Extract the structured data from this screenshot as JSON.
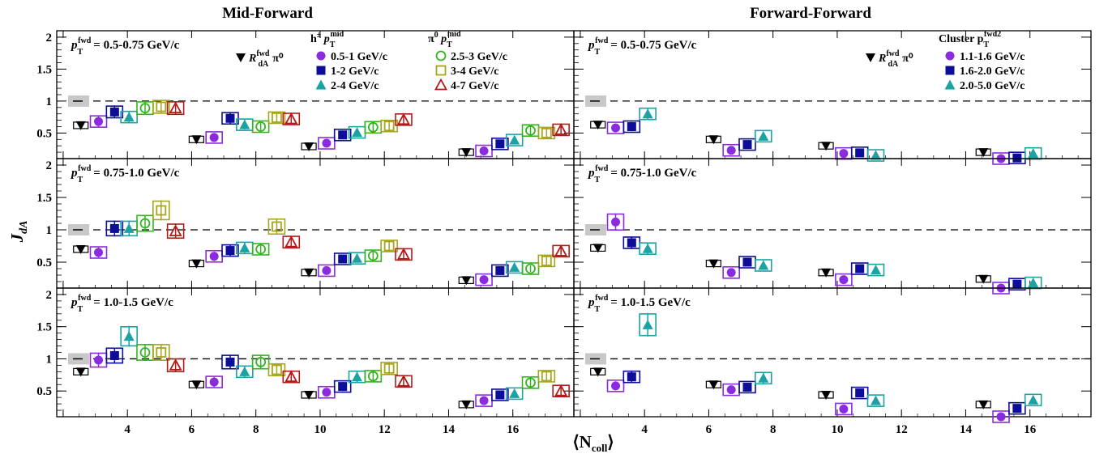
{
  "titles": {
    "left": "Mid-Forward",
    "right": "Forward-Forward"
  },
  "ylabel": "J",
  "ylabel_sub": "dA",
  "xlabel": "⟨N",
  "xlabel_sub": "coll",
  "xlabel_close": "⟩",
  "pt_labels": [
    "= 0.5-0.75 GeV/c",
    "= 0.75-1.0 GeV/c",
    "= 1.0-1.5 GeV/c"
  ],
  "pt_label_prefix": "p",
  "pt_label_sub": "T",
  "pt_label_sup": "fwd",
  "legend": {
    "rda_label": "R",
    "rda_sup": "fwd",
    "rda_sub": "dA",
    "rda_suffix": "π⁰",
    "h_head": "h",
    "h_head_sup": "±",
    "h_head_p": "p",
    "h_head_sub": "T",
    "h_head_sup2": "mid",
    "pi_head": "π",
    "pi_head_sup": "0",
    "pi_head_p": "p",
    "pi_head_sub": "T",
    "pi_head_sup2": "mid",
    "cl_head": "Cluster p",
    "cl_head_sub": "T",
    "cl_head_sup": "fwd2",
    "h_items": [
      "0.5-1 GeV/c",
      "1-2 GeV/c",
      "2-4 GeV/c"
    ],
    "pi_items": [
      "2.5-3 GeV/c",
      "3-4 GeV/c",
      "4-7 GeV/c"
    ],
    "cl_items": [
      "1.1-1.6 GeV/c",
      "1.6-2.0 GeV/c",
      "2.0-5.0 GeV/c"
    ]
  },
  "chart_data": {
    "type": "scatter",
    "xlim": [
      1.8,
      17.9
    ],
    "ylim": [
      0.1,
      2.1
    ],
    "xticks": [
      2,
      4,
      6,
      8,
      10,
      12,
      14,
      16
    ],
    "xtick_labels": [
      "4",
      "6",
      "8",
      "10",
      "12",
      "14",
      "16"
    ],
    "yticks": [
      0.5,
      1.0,
      1.5,
      2.0
    ],
    "ytick_labels": [
      "0.5",
      "1",
      "1.5",
      "2"
    ],
    "reference_line": 1.0,
    "ncoll_centers": [
      3.0,
      6.6,
      10.1,
      15.0
    ],
    "colors": {
      "rda": "#000000",
      "h1": "#8b2be0",
      "h2": "#0d0d99",
      "h3": "#1aa3a3",
      "p1": "#33b51f",
      "p2": "#a6a61a",
      "p3": "#b31a1a"
    },
    "mid_forward": {
      "series_order": [
        "h1",
        "h2",
        "h3",
        "p1",
        "p2",
        "p3"
      ],
      "x_offsets": [
        0.1,
        0.6,
        1.05,
        1.55,
        2.05,
        2.5
      ],
      "rows": [
        {
          "rda": [
            0.62,
            0.4,
            0.29,
            0.2
          ],
          "h1": [
            0.68,
            0.43,
            0.34,
            0.22
          ],
          "h2": [
            0.83,
            0.73,
            0.47,
            0.33
          ],
          "h3": [
            0.75,
            0.63,
            0.51,
            0.39
          ],
          "p1": [
            0.89,
            0.6,
            0.59,
            0.54
          ],
          "p2": [
            0.91,
            0.74,
            0.61,
            0.5
          ],
          "p3": [
            0.89,
            0.72,
            0.71,
            0.55
          ]
        },
        {
          "rda": [
            0.7,
            0.48,
            0.34,
            0.22
          ],
          "h1": [
            0.65,
            0.59,
            0.37,
            0.23
          ],
          "h2": [
            1.02,
            0.68,
            0.55,
            0.37
          ],
          "h3": [
            1.02,
            0.72,
            0.56,
            0.42
          ],
          "p1": [
            1.1,
            0.7,
            0.6,
            0.4
          ],
          "p2": [
            1.3,
            1.05,
            0.75,
            0.52
          ],
          "p3": [
            0.98,
            0.81,
            0.62,
            0.67
          ]
        },
        {
          "rda": [
            0.8,
            0.6,
            0.44,
            0.29
          ],
          "h1": [
            0.98,
            0.64,
            0.48,
            0.35
          ],
          "h2": [
            1.05,
            0.95,
            0.57,
            0.44
          ],
          "h3": [
            1.35,
            0.8,
            0.72,
            0.46
          ],
          "p1": [
            1.1,
            0.95,
            0.73,
            0.63
          ],
          "p2": [
            1.1,
            0.83,
            0.85,
            0.73
          ],
          "p3": [
            0.9,
            0.72,
            0.65,
            0.5
          ]
        }
      ]
    },
    "forward_forward": {
      "series_order": [
        "h1",
        "h2",
        "h3"
      ],
      "x_offsets": [
        0.1,
        0.6,
        1.1
      ],
      "rows": [
        {
          "rda": [
            0.63,
            0.4,
            0.3,
            0.2
          ],
          "h1": [
            0.58,
            0.23,
            0.18,
            0.1
          ],
          "h2": [
            0.6,
            0.32,
            0.19,
            0.11
          ],
          "h3": [
            0.8,
            0.45,
            0.15,
            0.18
          ]
        },
        {
          "rda": [
            0.72,
            0.48,
            0.34,
            0.24
          ],
          "h1": [
            1.12,
            0.34,
            0.23,
            0.1
          ],
          "h2": [
            0.8,
            0.5,
            0.4,
            0.16
          ],
          "h3": [
            0.71,
            0.45,
            0.38,
            0.18
          ]
        },
        {
          "rda": [
            0.8,
            0.6,
            0.44,
            0.29
          ],
          "h1": [
            0.58,
            0.52,
            0.22,
            0.1
          ],
          "h2": [
            0.72,
            0.56,
            0.47,
            0.23
          ],
          "h3": [
            1.53,
            0.7,
            0.35,
            0.36
          ]
        }
      ]
    }
  }
}
